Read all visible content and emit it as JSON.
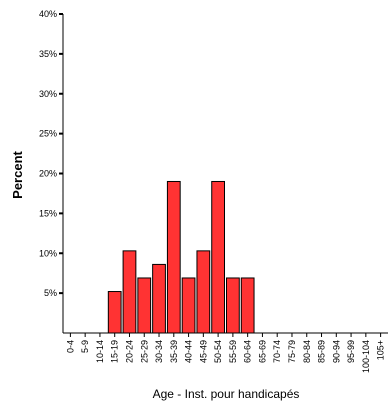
{
  "chart_data": {
    "type": "bar",
    "categories": [
      "0-4",
      "5-9",
      "10-14",
      "15-19",
      "20-24",
      "25-29",
      "30-34",
      "35-39",
      "40-44",
      "45-49",
      "50-54",
      "55-59",
      "60-64",
      "65-69",
      "70-74",
      "75-79",
      "80-84",
      "85-89",
      "90-94",
      "95-99",
      "100-104",
      "105+"
    ],
    "values": [
      0,
      0,
      0,
      5.2,
      10.3,
      6.9,
      8.6,
      19.0,
      6.9,
      10.3,
      19.0,
      6.9,
      6.9,
      0,
      0,
      0,
      0,
      0,
      0,
      0,
      0,
      0
    ],
    "xlabel": "Age - Inst. pour handicapés",
    "ylabel": "Percent",
    "ylim": [
      0,
      40
    ],
    "yticks": [
      5,
      10,
      15,
      20,
      25,
      30,
      35,
      40
    ],
    "ytick_labels": [
      "5%",
      "10%",
      "15%",
      "20%",
      "25%",
      "30%",
      "35%",
      "40%"
    ],
    "bar_color": "#ff3333",
    "bar_stroke": "#000000",
    "grid": false,
    "legend": "none"
  }
}
